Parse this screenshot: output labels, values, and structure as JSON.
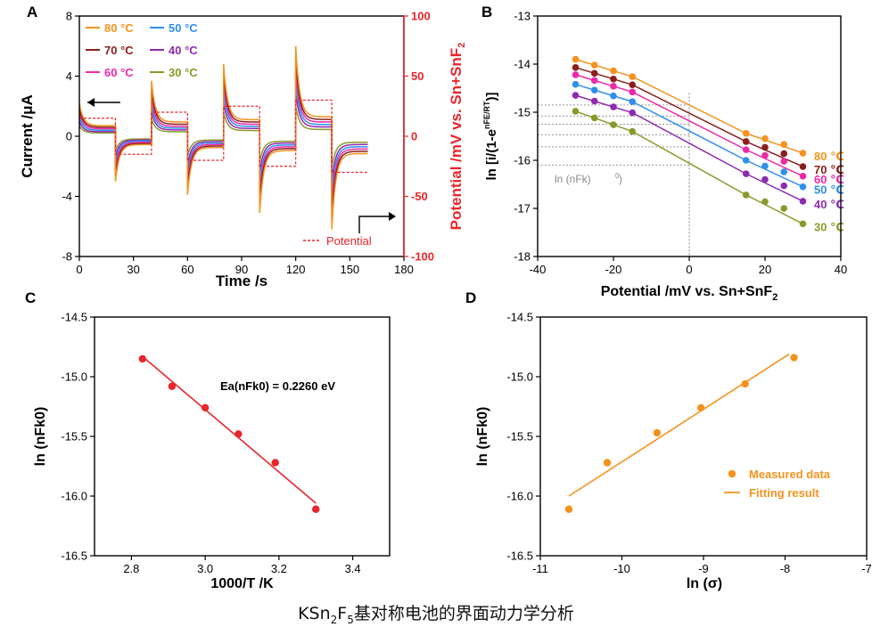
{
  "caption": {
    "prefix": "KSn",
    "sub1": "2",
    "mid": "F",
    "sub2": "5",
    "suffix": "基对称电池的界面动力学分析"
  },
  "colors": {
    "80": "#F5921E",
    "70": "#8B1E1E",
    "60": "#EC2AA8",
    "50": "#2F8FEA",
    "40": "#8E2BB0",
    "30": "#8A9A2A",
    "potential": "#E8262B",
    "fitC": "#E8262B",
    "fitD": "#F5921E"
  },
  "chart_data": [
    {
      "panel": "A",
      "type": "line",
      "xlabel": "Time /s",
      "ylabel": "Current /μA",
      "ylabel2": "Potential /mV vs. Sn+SnF2",
      "xlim": [
        0,
        180
      ],
      "ylim": [
        -8,
        8
      ],
      "ylim2": [
        -100,
        100
      ],
      "xticks": [
        "0",
        "30",
        "60",
        "90",
        "120",
        "150",
        "180"
      ],
      "yticks": [
        "-8",
        "-4",
        "0",
        "4",
        "8"
      ],
      "y2ticks": [
        "-100",
        "-50",
        "0",
        "50",
        "100"
      ],
      "legend": [
        "80 °C",
        "70 °C",
        "60 °C",
        "50 °C",
        "40 °C",
        "30 °C"
      ],
      "potential_label": "Potential",
      "potential_steps": [
        {
          "t0": 0,
          "t1": 20,
          "mv": 15
        },
        {
          "t0": 20,
          "t1": 40,
          "mv": -15
        },
        {
          "t0": 40,
          "t1": 60,
          "mv": 20
        },
        {
          "t0": 60,
          "t1": 80,
          "mv": -20
        },
        {
          "t0": 80,
          "t1": 100,
          "mv": 25
        },
        {
          "t0": 100,
          "t1": 120,
          "mv": -25
        },
        {
          "t0": 120,
          "t1": 140,
          "mv": 30
        },
        {
          "t0": 140,
          "t1": 160,
          "mv": -30
        }
      ],
      "series": [
        {
          "name": "80 °C",
          "peaks": [
            2.2,
            -3.0,
            3.7,
            -3.9,
            4.8,
            -5.1,
            6.0,
            -6.2
          ],
          "steady": [
            0.7,
            -0.55,
            0.95,
            -0.75,
            1.1,
            -0.95,
            1.3,
            -1.15
          ]
        },
        {
          "name": "70 °C",
          "peaks": [
            1.9,
            -2.6,
            3.2,
            -3.4,
            4.2,
            -4.4,
            5.2,
            -5.4
          ],
          "steady": [
            0.6,
            -0.48,
            0.8,
            -0.65,
            0.95,
            -0.82,
            1.12,
            -1.0
          ]
        },
        {
          "name": "60 °C",
          "peaks": [
            1.6,
            -2.2,
            2.7,
            -2.9,
            3.6,
            -3.8,
            4.5,
            -4.6
          ],
          "steady": [
            0.5,
            -0.4,
            0.66,
            -0.55,
            0.8,
            -0.7,
            0.95,
            -0.85
          ]
        },
        {
          "name": "50 °C",
          "peaks": [
            1.3,
            -1.8,
            2.2,
            -2.4,
            3.0,
            -3.1,
            3.7,
            -3.8
          ],
          "steady": [
            0.4,
            -0.32,
            0.54,
            -0.45,
            0.66,
            -0.58,
            0.78,
            -0.7
          ]
        },
        {
          "name": "40 °C",
          "peaks": [
            1.0,
            -1.4,
            1.7,
            -1.9,
            2.3,
            -2.4,
            2.9,
            -3.0
          ],
          "steady": [
            0.3,
            -0.25,
            0.42,
            -0.35,
            0.52,
            -0.45,
            0.62,
            -0.55
          ]
        },
        {
          "name": "30 °C",
          "peaks": [
            0.7,
            -1.0,
            1.2,
            -1.3,
            1.6,
            -1.7,
            2.0,
            -2.1
          ],
          "steady": [
            0.22,
            -0.18,
            0.3,
            -0.25,
            0.38,
            -0.33,
            0.45,
            -0.4
          ]
        }
      ]
    },
    {
      "panel": "B",
      "type": "scatter",
      "xlabel": "Potential /mV vs. Sn+SnF2",
      "ylabel": "ln [i/(1-e^(nFE/RT))]",
      "xlim": [
        -40,
        40
      ],
      "ylim": [
        -18,
        -13
      ],
      "xticks": [
        "-40",
        "-20",
        "0",
        "20",
        "40"
      ],
      "yticks": [
        "-18",
        "-17",
        "-16",
        "-15",
        "-14",
        "-13"
      ],
      "annotation": "ln (nFk0)",
      "x": [
        -30,
        -25,
        -20,
        -15,
        15,
        20,
        25,
        30
      ],
      "series": [
        {
          "name": "80 ℃",
          "y": [
            -13.9,
            -14.02,
            -14.14,
            -14.26,
            -15.44,
            -15.55,
            -15.67,
            -15.85
          ],
          "intercept": -14.85,
          "slope": -0.0335
        },
        {
          "name": "70 ℃",
          "y": [
            -14.07,
            -14.19,
            -14.31,
            -14.43,
            -15.61,
            -15.73,
            -15.86,
            -16.13
          ],
          "intercept": -15.08,
          "slope": -0.0345
        },
        {
          "name": "60 ℃",
          "y": [
            -14.22,
            -14.34,
            -14.46,
            -14.58,
            -15.78,
            -15.9,
            -16.02,
            -16.33
          ],
          "intercept": -15.25,
          "slope": -0.035
        },
        {
          "name": "50 ℃",
          "y": [
            -14.42,
            -14.54,
            -14.66,
            -14.78,
            -16.0,
            -16.12,
            -16.24,
            -16.55
          ],
          "intercept": -15.47,
          "slope": -0.0355
        },
        {
          "name": "40 ℃",
          "y": [
            -14.65,
            -14.77,
            -14.89,
            -15.01,
            -16.28,
            -16.4,
            -16.53,
            -16.85
          ],
          "intercept": -15.72,
          "slope": -0.0362
        },
        {
          "name": "30 ℃",
          "y": [
            -14.98,
            -15.12,
            -15.26,
            -15.4,
            -16.72,
            -16.86,
            -17.0,
            -17.32
          ],
          "intercept": -16.1,
          "slope": -0.0385
        }
      ]
    },
    {
      "panel": "C",
      "type": "scatter",
      "xlabel": "1000/T /K",
      "ylabel": "ln (nFk0)",
      "xlim": [
        2.7,
        3.5
      ],
      "ylim": [
        -16.5,
        -14.5
      ],
      "xticks": [
        "2.8",
        "3.0",
        "3.2",
        "3.4"
      ],
      "yticks": [
        "-16.5",
        "-16.0",
        "-15.5",
        "-15.0",
        "-14.5"
      ],
      "annotation": "Ea(nFk0) = 0.2260 eV",
      "x": [
        2.83,
        2.91,
        3.0,
        3.09,
        3.19,
        3.3
      ],
      "y": [
        -14.85,
        -15.08,
        -15.26,
        -15.48,
        -15.72,
        -16.11
      ],
      "fit": {
        "x": [
          2.83,
          3.3
        ],
        "y": [
          -14.83,
          -16.06
        ]
      }
    },
    {
      "panel": "D",
      "type": "scatter",
      "xlabel": "ln (σ)",
      "ylabel": "ln (nFk0)",
      "xlim": [
        -11,
        -7
      ],
      "ylim": [
        -16.5,
        -14.5
      ],
      "xticks": [
        "-11",
        "-10",
        "-9",
        "-8",
        "-7"
      ],
      "yticks": [
        "-16.5",
        "-16.0",
        "-15.5",
        "-15.0",
        "-14.5"
      ],
      "legend": [
        "Measured data",
        "Fitting result"
      ],
      "x": [
        -10.65,
        -10.18,
        -9.57,
        -9.03,
        -8.49,
        -7.89
      ],
      "y": [
        -16.11,
        -15.72,
        -15.47,
        -15.26,
        -15.06,
        -14.84
      ],
      "fit": {
        "x": [
          -10.65,
          -7.95
        ],
        "y": [
          -16.0,
          -14.81
        ]
      }
    }
  ]
}
